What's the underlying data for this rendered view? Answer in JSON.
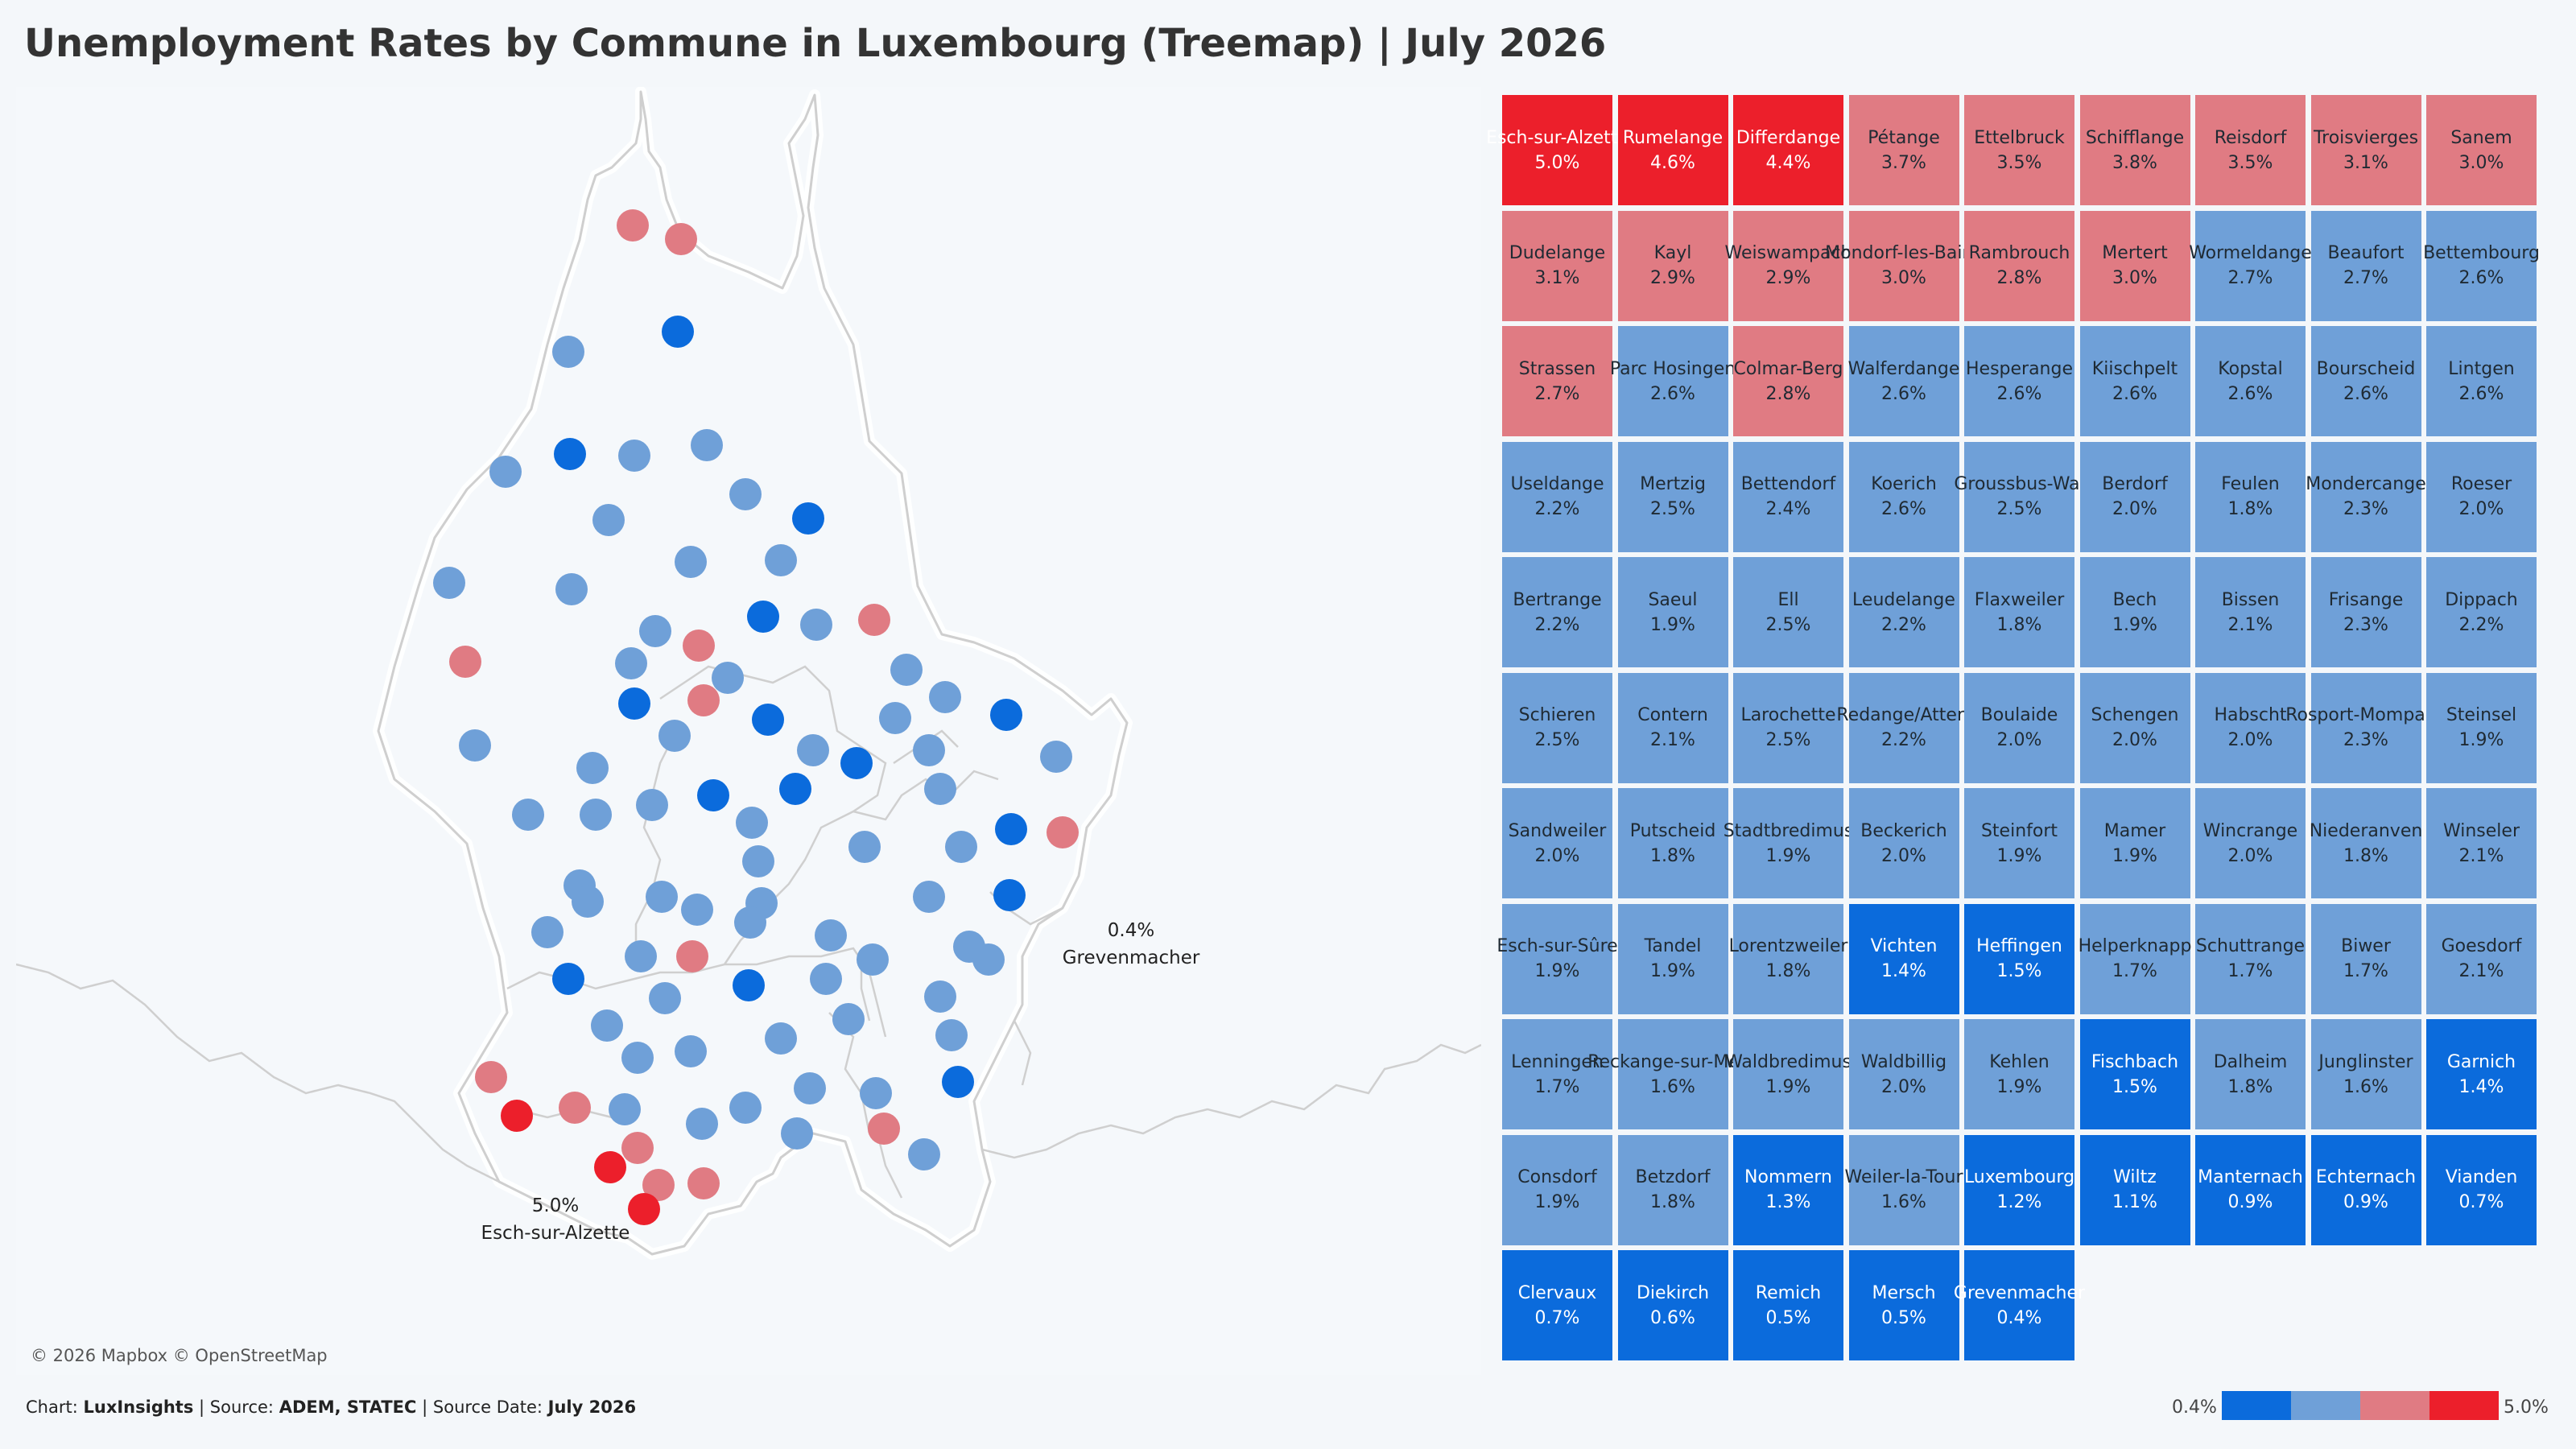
{
  "title": "Unemployment Rates by Commune in Luxembourg (Treemap) | July 2026",
  "attribution": "© 2026 Mapbox © OpenStreetMap",
  "footer": {
    "chart_prefix": "Chart:",
    "chart_by": "LuxInsights",
    "source_prefix": "Source:",
    "source": "ADEM, STATEC",
    "date_prefix": "Source Date:",
    "date": "July 2026"
  },
  "legend": {
    "min_label": "0.4%",
    "max_label": "5.0%",
    "colors": [
      "#0b6bdc",
      "#6fa0d8",
      "#e07b83",
      "#ec1f2b"
    ]
  },
  "map": {
    "max_label": {
      "value": "5.0%",
      "name": "Esch-sur-Alzette"
    },
    "min_label": {
      "value": "0.4%",
      "name": "Grevenmacher"
    }
  },
  "colors": {
    "high": "#ec1f2b",
    "above": "#e07b83",
    "mid": "#6fa0d8",
    "low": "#0b6bdc",
    "dark_text": "#1f2a33",
    "light_text": "#ffffff"
  },
  "chart_data": {
    "type": "treemap",
    "title": "Unemployment Rates by Commune in Luxembourg (Treemap) | July 2026",
    "value_unit": "%",
    "color_scale": {
      "min": 0.4,
      "max": 5.0,
      "bins": [
        "low",
        "mid",
        "above",
        "high"
      ]
    },
    "items": [
      {
        "name": "Esch-sur-Alzette",
        "label": "5.0%",
        "value": 5.0,
        "bin": "high"
      },
      {
        "name": "Rumelange",
        "label": "4.6%",
        "value": 4.6,
        "bin": "high"
      },
      {
        "name": "Differdange",
        "label": "4.4%",
        "value": 4.4,
        "bin": "high"
      },
      {
        "name": "Pétange",
        "label": "3.7%",
        "value": 3.7,
        "bin": "above"
      },
      {
        "name": "Ettelbruck",
        "label": "3.5%",
        "value": 3.5,
        "bin": "above"
      },
      {
        "name": "Schifflange",
        "label": "3.8%",
        "value": 3.8,
        "bin": "above"
      },
      {
        "name": "Reisdorf",
        "label": "3.5%",
        "value": 3.5,
        "bin": "above"
      },
      {
        "name": "Troisvierges",
        "label": "3.1%",
        "value": 3.1,
        "bin": "above"
      },
      {
        "name": "Sanem",
        "label": "3.0%",
        "value": 3.0,
        "bin": "above"
      },
      {
        "name": "Dudelange",
        "label": "3.1%",
        "value": 3.1,
        "bin": "above"
      },
      {
        "name": "Kayl",
        "label": "2.9%",
        "value": 2.9,
        "bin": "above"
      },
      {
        "name": "Weiswampach",
        "label": "2.9%",
        "value": 2.9,
        "bin": "above"
      },
      {
        "name": "Mondorf-les-Bains",
        "label": "3.0%",
        "value": 3.0,
        "bin": "above"
      },
      {
        "name": "Rambrouch",
        "label": "2.8%",
        "value": 2.8,
        "bin": "above"
      },
      {
        "name": "Mertert",
        "label": "3.0%",
        "value": 3.0,
        "bin": "above"
      },
      {
        "name": "Wormeldange",
        "label": "2.7%",
        "value": 2.7,
        "bin": "mid"
      },
      {
        "name": "Beaufort",
        "label": "2.7%",
        "value": 2.7,
        "bin": "mid"
      },
      {
        "name": "Bettembourg",
        "label": "2.6%",
        "value": 2.6,
        "bin": "mid"
      },
      {
        "name": "Strassen",
        "label": "2.7%",
        "value": 2.7,
        "bin": "above"
      },
      {
        "name": "Parc Hosingen",
        "label": "2.6%",
        "value": 2.6,
        "bin": "mid"
      },
      {
        "name": "Colmar-Berg",
        "label": "2.8%",
        "value": 2.8,
        "bin": "above"
      },
      {
        "name": "Walferdange",
        "label": "2.6%",
        "value": 2.6,
        "bin": "mid"
      },
      {
        "name": "Hesperange",
        "label": "2.6%",
        "value": 2.6,
        "bin": "mid"
      },
      {
        "name": "Kiischpelt",
        "label": "2.6%",
        "value": 2.6,
        "bin": "mid"
      },
      {
        "name": "Kopstal",
        "label": "2.6%",
        "value": 2.6,
        "bin": "mid"
      },
      {
        "name": "Bourscheid",
        "label": "2.6%",
        "value": 2.6,
        "bin": "mid"
      },
      {
        "name": "Lintgen",
        "label": "2.6%",
        "value": 2.6,
        "bin": "mid"
      },
      {
        "name": "Useldange",
        "label": "2.2%",
        "value": 2.2,
        "bin": "mid"
      },
      {
        "name": "Mertzig",
        "label": "2.5%",
        "value": 2.5,
        "bin": "mid"
      },
      {
        "name": "Bettendorf",
        "label": "2.4%",
        "value": 2.4,
        "bin": "mid"
      },
      {
        "name": "Koerich",
        "label": "2.6%",
        "value": 2.6,
        "bin": "mid"
      },
      {
        "name": "Groussbus-Wal",
        "label": "2.5%",
        "value": 2.5,
        "bin": "mid"
      },
      {
        "name": "Berdorf",
        "label": "2.0%",
        "value": 2.0,
        "bin": "mid"
      },
      {
        "name": "Feulen",
        "label": "1.8%",
        "value": 1.8,
        "bin": "mid"
      },
      {
        "name": "Mondercange",
        "label": "2.3%",
        "value": 2.3,
        "bin": "mid"
      },
      {
        "name": "Roeser",
        "label": "2.0%",
        "value": 2.0,
        "bin": "mid"
      },
      {
        "name": "Bertrange",
        "label": "2.2%",
        "value": 2.2,
        "bin": "mid"
      },
      {
        "name": "Saeul",
        "label": "1.9%",
        "value": 1.9,
        "bin": "mid"
      },
      {
        "name": "Ell",
        "label": "2.5%",
        "value": 2.5,
        "bin": "mid"
      },
      {
        "name": "Leudelange",
        "label": "2.2%",
        "value": 2.2,
        "bin": "mid"
      },
      {
        "name": "Flaxweiler",
        "label": "1.8%",
        "value": 1.8,
        "bin": "mid"
      },
      {
        "name": "Bech",
        "label": "1.9%",
        "value": 1.9,
        "bin": "mid"
      },
      {
        "name": "Bissen",
        "label": "2.1%",
        "value": 2.1,
        "bin": "mid"
      },
      {
        "name": "Frisange",
        "label": "2.3%",
        "value": 2.3,
        "bin": "mid"
      },
      {
        "name": "Dippach",
        "label": "2.2%",
        "value": 2.2,
        "bin": "mid"
      },
      {
        "name": "Schieren",
        "label": "2.5%",
        "value": 2.5,
        "bin": "mid"
      },
      {
        "name": "Contern",
        "label": "2.1%",
        "value": 2.1,
        "bin": "mid"
      },
      {
        "name": "Larochette",
        "label": "2.5%",
        "value": 2.5,
        "bin": "mid"
      },
      {
        "name": "Redange/Attert",
        "label": "2.2%",
        "value": 2.2,
        "bin": "mid"
      },
      {
        "name": "Boulaide",
        "label": "2.0%",
        "value": 2.0,
        "bin": "mid"
      },
      {
        "name": "Schengen",
        "label": "2.0%",
        "value": 2.0,
        "bin": "mid"
      },
      {
        "name": "Habscht",
        "label": "2.0%",
        "value": 2.0,
        "bin": "mid"
      },
      {
        "name": "Rosport-Mompach",
        "label": "2.3%",
        "value": 2.3,
        "bin": "mid"
      },
      {
        "name": "Steinsel",
        "label": "1.9%",
        "value": 1.9,
        "bin": "mid"
      },
      {
        "name": "Sandweiler",
        "label": "2.0%",
        "value": 2.0,
        "bin": "mid"
      },
      {
        "name": "Putscheid",
        "label": "1.8%",
        "value": 1.8,
        "bin": "mid"
      },
      {
        "name": "Stadtbredimus",
        "label": "1.9%",
        "value": 1.9,
        "bin": "mid"
      },
      {
        "name": "Beckerich",
        "label": "2.0%",
        "value": 2.0,
        "bin": "mid"
      },
      {
        "name": "Steinfort",
        "label": "1.9%",
        "value": 1.9,
        "bin": "mid"
      },
      {
        "name": "Mamer",
        "label": "1.9%",
        "value": 1.9,
        "bin": "mid"
      },
      {
        "name": "Wincrange",
        "label": "2.0%",
        "value": 2.0,
        "bin": "mid"
      },
      {
        "name": "Niederanven",
        "label": "1.8%",
        "value": 1.8,
        "bin": "mid"
      },
      {
        "name": "Winseler",
        "label": "2.1%",
        "value": 2.1,
        "bin": "mid"
      },
      {
        "name": "Esch-sur-Sûre",
        "label": "1.9%",
        "value": 1.9,
        "bin": "mid"
      },
      {
        "name": "Tandel",
        "label": "1.9%",
        "value": 1.9,
        "bin": "mid"
      },
      {
        "name": "Lorentzweiler",
        "label": "1.8%",
        "value": 1.8,
        "bin": "mid"
      },
      {
        "name": "Vichten",
        "label": "1.4%",
        "value": 1.4,
        "bin": "low"
      },
      {
        "name": "Heffingen",
        "label": "1.5%",
        "value": 1.5,
        "bin": "low"
      },
      {
        "name": "Helperknapp",
        "label": "1.7%",
        "value": 1.7,
        "bin": "mid"
      },
      {
        "name": "Schuttrange",
        "label": "1.7%",
        "value": 1.7,
        "bin": "mid"
      },
      {
        "name": "Biwer",
        "label": "1.7%",
        "value": 1.7,
        "bin": "mid"
      },
      {
        "name": "Goesdorf",
        "label": "2.1%",
        "value": 2.1,
        "bin": "mid"
      },
      {
        "name": "Lenningen",
        "label": "1.7%",
        "value": 1.7,
        "bin": "mid"
      },
      {
        "name": "Reckange-sur-Mess",
        "label": "1.6%",
        "value": 1.6,
        "bin": "mid"
      },
      {
        "name": "Waldbredimus",
        "label": "1.9%",
        "value": 1.9,
        "bin": "mid"
      },
      {
        "name": "Waldbillig",
        "label": "2.0%",
        "value": 2.0,
        "bin": "mid"
      },
      {
        "name": "Kehlen",
        "label": "1.9%",
        "value": 1.9,
        "bin": "mid"
      },
      {
        "name": "Fischbach",
        "label": "1.5%",
        "value": 1.5,
        "bin": "low"
      },
      {
        "name": "Dalheim",
        "label": "1.8%",
        "value": 1.8,
        "bin": "mid"
      },
      {
        "name": "Junglinster",
        "label": "1.6%",
        "value": 1.6,
        "bin": "mid"
      },
      {
        "name": "Garnich",
        "label": "1.4%",
        "value": 1.4,
        "bin": "low"
      },
      {
        "name": "Consdorf",
        "label": "1.9%",
        "value": 1.9,
        "bin": "mid"
      },
      {
        "name": "Betzdorf",
        "label": "1.8%",
        "value": 1.8,
        "bin": "mid"
      },
      {
        "name": "Nommern",
        "label": "1.3%",
        "value": 1.3,
        "bin": "low"
      },
      {
        "name": "Weiler-la-Tour",
        "label": "1.6%",
        "value": 1.6,
        "bin": "mid"
      },
      {
        "name": "Luxembourg",
        "label": "1.2%",
        "value": 1.2,
        "bin": "low"
      },
      {
        "name": "Wiltz",
        "label": "1.1%",
        "value": 1.1,
        "bin": "low"
      },
      {
        "name": "Manternach",
        "label": "0.9%",
        "value": 0.9,
        "bin": "low"
      },
      {
        "name": "Echternach",
        "label": "0.9%",
        "value": 0.9,
        "bin": "low"
      },
      {
        "name": "Vianden",
        "label": "0.7%",
        "value": 0.7,
        "bin": "low"
      },
      {
        "name": "Clervaux",
        "label": "0.7%",
        "value": 0.7,
        "bin": "low"
      },
      {
        "name": "Diekirch",
        "label": "0.6%",
        "value": 0.6,
        "bin": "low"
      },
      {
        "name": "Remich",
        "label": "0.5%",
        "value": 0.5,
        "bin": "low"
      },
      {
        "name": "Mersch",
        "label": "0.5%",
        "value": 0.5,
        "bin": "low"
      },
      {
        "name": "Grevenmacher",
        "label": "0.4%",
        "value": 0.4,
        "bin": "low"
      }
    ]
  }
}
